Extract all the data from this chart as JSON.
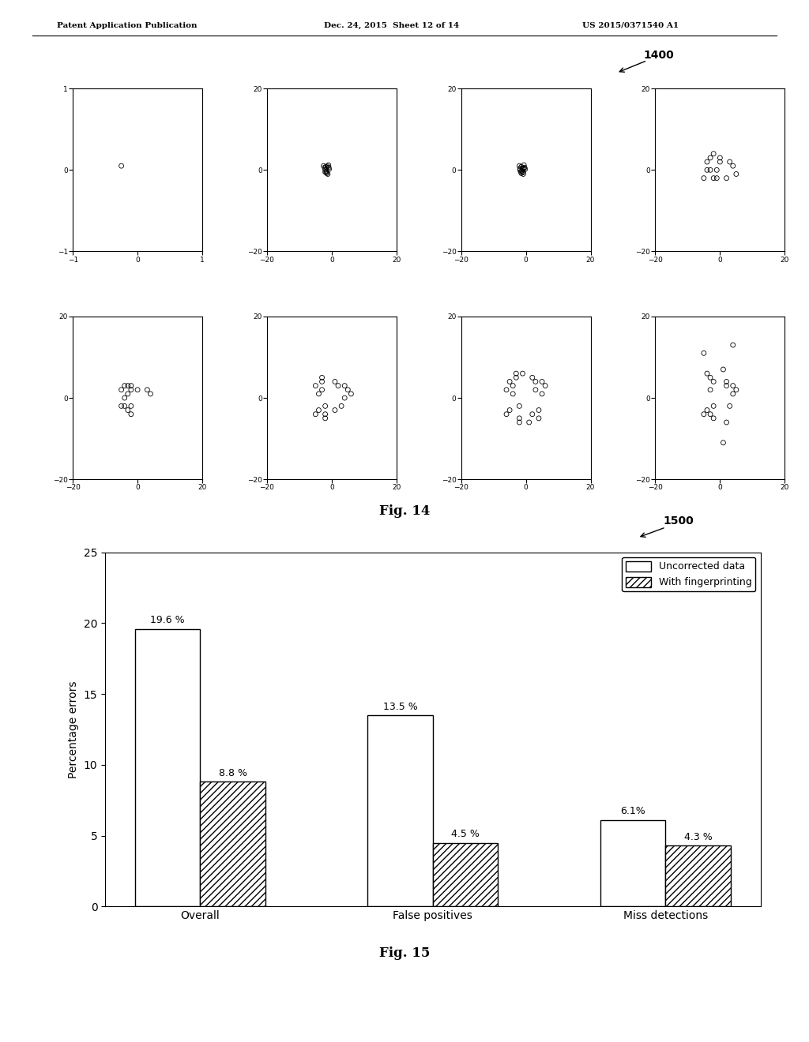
{
  "header_left": "Patent Application Publication",
  "header_mid": "Dec. 24, 2015  Sheet 12 of 14",
  "header_right": "US 2015/0371540 A1",
  "fig14_label": "1400",
  "fig14_caption": "Fig. 14",
  "fig15_label": "1500",
  "fig15_caption": "Fig. 15",
  "scatter_subplots": [
    {
      "row": 0,
      "col": 0,
      "xlim": [
        -1,
        1
      ],
      "ylim": [
        -1,
        1
      ],
      "xticks": [
        -1,
        0,
        1
      ],
      "yticks": [
        -1,
        0,
        1
      ],
      "points": [
        [
          -0.25,
          0.05
        ]
      ]
    },
    {
      "row": 0,
      "col": 1,
      "xlim": [
        -20,
        20
      ],
      "ylim": [
        -20,
        20
      ],
      "xticks": [
        -20,
        0,
        20
      ],
      "yticks": [
        -20,
        0,
        20
      ],
      "points": [
        [
          -2.5,
          1.0
        ],
        [
          -1.5,
          0.5
        ],
        [
          -2.0,
          -0.5
        ],
        [
          -1.0,
          1.2
        ],
        [
          -0.8,
          0.2
        ],
        [
          -1.5,
          -0.8
        ],
        [
          -2.2,
          0.6
        ],
        [
          -1.2,
          -1.0
        ],
        [
          -1.8,
          0.8
        ],
        [
          -2.0,
          0.1
        ],
        [
          -0.9,
          0.6
        ],
        [
          -1.6,
          -0.3
        ],
        [
          -1.3,
          0.9
        ],
        [
          -1.7,
          -0.6
        ]
      ]
    },
    {
      "row": 0,
      "col": 2,
      "xlim": [
        -20,
        20
      ],
      "ylim": [
        -20,
        20
      ],
      "xticks": [
        -20,
        0,
        20
      ],
      "yticks": [
        -20,
        0,
        20
      ],
      "points": [
        [
          -2.0,
          1.0
        ],
        [
          -1.0,
          0.5
        ],
        [
          -1.6,
          -0.4
        ],
        [
          -0.6,
          1.2
        ],
        [
          -0.2,
          0.2
        ],
        [
          -1.0,
          -0.6
        ],
        [
          -1.8,
          0.4
        ],
        [
          -0.8,
          -1.0
        ],
        [
          -1.4,
          0.8
        ],
        [
          -1.8,
          0.0
        ],
        [
          -0.4,
          0.6
        ],
        [
          -1.2,
          -0.2
        ],
        [
          -0.6,
          0.4
        ],
        [
          -1.4,
          -0.8
        ],
        [
          -1.0,
          0.3
        ],
        [
          -0.8,
          -0.5
        ]
      ]
    },
    {
      "row": 0,
      "col": 3,
      "xlim": [
        -20,
        20
      ],
      "ylim": [
        -20,
        20
      ],
      "xticks": [
        -20,
        0,
        20
      ],
      "yticks": [
        -20,
        0,
        20
      ],
      "points": [
        [
          -4,
          2
        ],
        [
          -2,
          4
        ],
        [
          -3,
          0
        ],
        [
          0,
          2
        ],
        [
          -2,
          -2
        ],
        [
          -5,
          -2
        ],
        [
          -3,
          3
        ],
        [
          -1,
          -2
        ],
        [
          4,
          1
        ],
        [
          3,
          2
        ],
        [
          -1,
          0
        ],
        [
          2,
          -2
        ],
        [
          0,
          3
        ],
        [
          -4,
          0
        ],
        [
          5,
          -1
        ]
      ]
    },
    {
      "row": 1,
      "col": 0,
      "xlim": [
        -20,
        20
      ],
      "ylim": [
        -20,
        20
      ],
      "xticks": [
        -20,
        0,
        20
      ],
      "yticks": [
        -20,
        0,
        20
      ],
      "points": [
        [
          -5,
          2
        ],
        [
          -3,
          3
        ],
        [
          -4,
          0
        ],
        [
          -2,
          2
        ],
        [
          -3,
          -3
        ],
        [
          -5,
          -2
        ],
        [
          -4,
          3
        ],
        [
          -2,
          -2
        ],
        [
          4,
          1
        ],
        [
          3,
          2
        ],
        [
          -2,
          -4
        ],
        [
          0,
          2
        ],
        [
          -3,
          1
        ],
        [
          -4,
          -2
        ],
        [
          -2,
          3
        ]
      ]
    },
    {
      "row": 1,
      "col": 1,
      "xlim": [
        -20,
        20
      ],
      "ylim": [
        -20,
        20
      ],
      "xticks": [
        -20,
        0,
        20
      ],
      "yticks": [
        -20,
        0,
        20
      ],
      "points": [
        [
          -5,
          3
        ],
        [
          -3,
          5
        ],
        [
          -4,
          1
        ],
        [
          1,
          4
        ],
        [
          -2,
          -2
        ],
        [
          -5,
          -4
        ],
        [
          -3,
          4
        ],
        [
          -2,
          -4
        ],
        [
          5,
          2
        ],
        [
          4,
          3
        ],
        [
          -2,
          -5
        ],
        [
          2,
          3
        ],
        [
          4,
          0
        ],
        [
          -3,
          2
        ],
        [
          1,
          -3
        ],
        [
          3,
          -2
        ],
        [
          -4,
          -3
        ],
        [
          6,
          1
        ]
      ]
    },
    {
      "row": 1,
      "col": 2,
      "xlim": [
        -20,
        20
      ],
      "ylim": [
        -20,
        20
      ],
      "xticks": [
        -20,
        0,
        20
      ],
      "yticks": [
        -20,
        0,
        20
      ],
      "points": [
        [
          -5,
          4
        ],
        [
          -3,
          6
        ],
        [
          -4,
          1
        ],
        [
          2,
          5
        ],
        [
          -2,
          -2
        ],
        [
          -6,
          -4
        ],
        [
          -3,
          5
        ],
        [
          -2,
          -5
        ],
        [
          6,
          3
        ],
        [
          5,
          4
        ],
        [
          -2,
          -6
        ],
        [
          3,
          4
        ],
        [
          5,
          1
        ],
        [
          -4,
          3
        ],
        [
          2,
          -4
        ],
        [
          4,
          -3
        ],
        [
          -5,
          -3
        ],
        [
          1,
          -6
        ],
        [
          3,
          2
        ],
        [
          -6,
          2
        ],
        [
          4,
          -5
        ],
        [
          -1,
          6
        ]
      ]
    },
    {
      "row": 1,
      "col": 3,
      "xlim": [
        -20,
        20
      ],
      "ylim": [
        -20,
        20
      ],
      "xticks": [
        -20,
        0,
        20
      ],
      "yticks": [
        -20,
        0,
        20
      ],
      "points": [
        [
          -5,
          11
        ],
        [
          4,
          13
        ],
        [
          -3,
          5
        ],
        [
          2,
          4
        ],
        [
          -2,
          -2
        ],
        [
          -5,
          -4
        ],
        [
          -2,
          4
        ],
        [
          -3,
          -4
        ],
        [
          5,
          2
        ],
        [
          4,
          3
        ],
        [
          -2,
          -5
        ],
        [
          2,
          3
        ],
        [
          4,
          1
        ],
        [
          -3,
          2
        ],
        [
          1,
          -11
        ],
        [
          3,
          -2
        ],
        [
          -4,
          -3
        ],
        [
          2,
          -6
        ],
        [
          -4,
          6
        ],
        [
          1,
          7
        ]
      ]
    }
  ],
  "bar_categories": [
    "Overall",
    "False positives",
    "Miss detections"
  ],
  "bar_uncorrected": [
    19.6,
    13.5,
    6.1
  ],
  "bar_fingerprint": [
    8.8,
    4.5,
    4.3
  ],
  "bar_labels_unc": [
    "19.6 %",
    "13.5 %",
    "6.1%"
  ],
  "bar_labels_fp": [
    "8.8 %",
    "4.5 %",
    "4.3 %"
  ],
  "bar_ylabel": "Percentage errors",
  "bar_ylim": [
    0,
    25
  ],
  "bar_yticks": [
    0,
    5,
    10,
    15,
    20,
    25
  ],
  "legend_labels": [
    "Uncorrected data",
    "With fingerprinting"
  ],
  "background_color": "#ffffff"
}
